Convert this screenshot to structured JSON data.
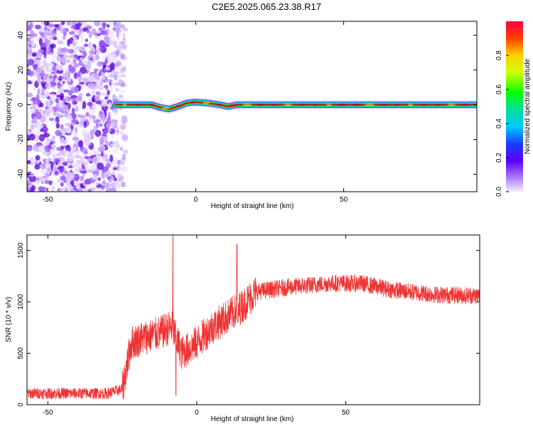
{
  "title": "C2E5.2025.065.23.38.R17",
  "chart_data": [
    {
      "type": "heatmap",
      "xlabel": "Height of straight line (km)",
      "ylabel": "Frequency (Hz)",
      "xlim": [
        -57,
        95
      ],
      "ylim": [
        -50,
        48
      ],
      "x_ticks": [
        -50,
        0,
        50
      ],
      "y_ticks": [
        -40,
        -20,
        0,
        20,
        40
      ],
      "colorbar": {
        "label": "Normalized spectral amplitude",
        "range": [
          0,
          1
        ],
        "ticks": [
          "0.0",
          "0.2",
          "0.4",
          "0.6",
          "0.8"
        ]
      },
      "noise_region_x": [
        -57,
        -27
      ],
      "signal_x_start": -27,
      "signal_freq_hz": [
        {
          "x": -27,
          "f": 0
        },
        {
          "x": -22,
          "f": 0
        },
        {
          "x": -15,
          "f": 0
        },
        {
          "x": -12,
          "f": -1.5
        },
        {
          "x": -9,
          "f": -2.5
        },
        {
          "x": -6,
          "f": -1
        },
        {
          "x": -3,
          "f": 1
        },
        {
          "x": 0,
          "f": 1.5
        },
        {
          "x": 4,
          "f": 1
        },
        {
          "x": 8,
          "f": 0
        },
        {
          "x": 11,
          "f": -1
        },
        {
          "x": 14,
          "f": 0
        },
        {
          "x": 95,
          "f": 0
        }
      ]
    },
    {
      "type": "line",
      "xlabel": "Height of straight line (km)",
      "ylabel": "SNR (10 * v/v)",
      "xlim": [
        -57,
        95
      ],
      "ylim": [
        0,
        1650
      ],
      "x_ticks": [
        -50,
        0,
        50
      ],
      "y_ticks": [
        0,
        500,
        1000,
        1500
      ],
      "series": [
        {
          "color": "#ee3333",
          "baseline": [
            {
              "x": -57,
              "y": 110
            },
            {
              "x": -30,
              "y": 110
            },
            {
              "x": -25,
              "y": 150
            },
            {
              "x": -22,
              "y": 600
            },
            {
              "x": -18,
              "y": 650
            },
            {
              "x": -12,
              "y": 700
            },
            {
              "x": -8.5,
              "y": 760
            },
            {
              "x": -5,
              "y": 500
            },
            {
              "x": 0,
              "y": 600
            },
            {
              "x": 5,
              "y": 750
            },
            {
              "x": 10,
              "y": 850
            },
            {
              "x": 15,
              "y": 950
            },
            {
              "x": 20,
              "y": 1100
            },
            {
              "x": 30,
              "y": 1140
            },
            {
              "x": 45,
              "y": 1180
            },
            {
              "x": 55,
              "y": 1180
            },
            {
              "x": 65,
              "y": 1120
            },
            {
              "x": 80,
              "y": 1070
            },
            {
              "x": 95,
              "y": 1060
            }
          ],
          "spikes": [
            {
              "x": -8,
              "y": 1650
            },
            {
              "x": -7,
              "y": 90
            },
            {
              "x": 13.5,
              "y": 1560
            },
            {
              "x": 13.8,
              "y": 800
            }
          ]
        }
      ]
    }
  ]
}
